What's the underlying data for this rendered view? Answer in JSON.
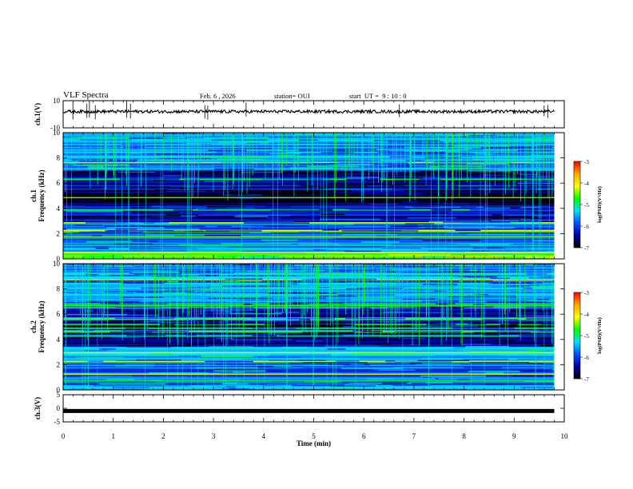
{
  "header": {
    "title": "VLF Spectra",
    "date": "Feb. 6 , 2026",
    "station": "station= OUI",
    "start_time": "start  UT =  9 : 10 : 0"
  },
  "colorbar": {
    "label": "log(PSD)(V²/Hz)",
    "ticks": [
      "-3",
      "-4",
      "-5",
      "-6",
      "-7"
    ],
    "colormap": [
      "#ff0000",
      "#ffaa00",
      "#ffff00",
      "#00ff00",
      "#00e0ff",
      "#0050ff",
      "#0000a0",
      "#000000"
    ]
  },
  "chart_data": [
    {
      "type": "line",
      "panel": "ch1-waveform",
      "ylabel": "ch.1(V)",
      "ylim": [
        -10,
        10
      ],
      "yticks": [
        "10",
        "-10"
      ],
      "x": [
        0,
        9.8
      ],
      "series": [
        {
          "values": [
            2,
            2
          ]
        }
      ],
      "color": "#000000"
    },
    {
      "type": "heatmap",
      "panel": "ch1-spectrogram",
      "ylabel": "ch.1\nFrequency (kHz)",
      "ylim": [
        0,
        10
      ],
      "yticks": [
        "0",
        "2",
        "4",
        "6",
        "8",
        "10"
      ],
      "xlim": [
        0,
        9.8
      ],
      "bands_khz": [
        {
          "range": [
            0,
            0.5
          ],
          "level": -4.5
        },
        {
          "range": [
            0.5,
            1.5
          ],
          "level": -5.6
        },
        {
          "range": [
            1.5,
            3.0
          ],
          "level": -5.9
        },
        {
          "range": [
            3.0,
            4.5
          ],
          "level": -6.3
        },
        {
          "range": [
            4.5,
            5.5
          ],
          "level": -6.9
        },
        {
          "range": [
            5.5,
            7.0
          ],
          "level": -6.4
        },
        {
          "range": [
            7.0,
            10.0
          ],
          "level": -5.6
        }
      ]
    },
    {
      "type": "heatmap",
      "panel": "ch2-spectrogram",
      "ylabel": "ch.2\nFrequency (kHz)",
      "ylim": [
        0,
        10
      ],
      "yticks": [
        "0",
        "2",
        "4",
        "6",
        "8",
        "10"
      ],
      "xlim": [
        0,
        9.8
      ],
      "bands_khz": [
        {
          "range": [
            0,
            1.5
          ],
          "level": -5.7
        },
        {
          "range": [
            1.5,
            2.5
          ],
          "level": -5.8
        },
        {
          "range": [
            2.5,
            3.5
          ],
          "level": -5.3
        },
        {
          "range": [
            3.5,
            5.5
          ],
          "level": -6.6
        },
        {
          "range": [
            5.5,
            7.0
          ],
          "level": -6.2
        },
        {
          "range": [
            7.0,
            10.0
          ],
          "level": -5.6
        }
      ]
    },
    {
      "type": "line",
      "panel": "ch3-waveform",
      "ylabel": "ch.3(V)",
      "ylim": [
        -5,
        5
      ],
      "yticks": [
        "5",
        "0",
        "-5"
      ],
      "x": [
        0,
        9.8
      ],
      "series": [
        {
          "values": [
            -1,
            -1
          ]
        }
      ],
      "color": "#000000"
    },
    {
      "type": "axis",
      "panel": "time-axis",
      "xlabel": "Time (min)",
      "xlim": [
        0,
        10
      ],
      "xticks": [
        "0",
        "1",
        "2",
        "3",
        "4",
        "5",
        "6",
        "7",
        "8",
        "9",
        "10"
      ]
    }
  ]
}
